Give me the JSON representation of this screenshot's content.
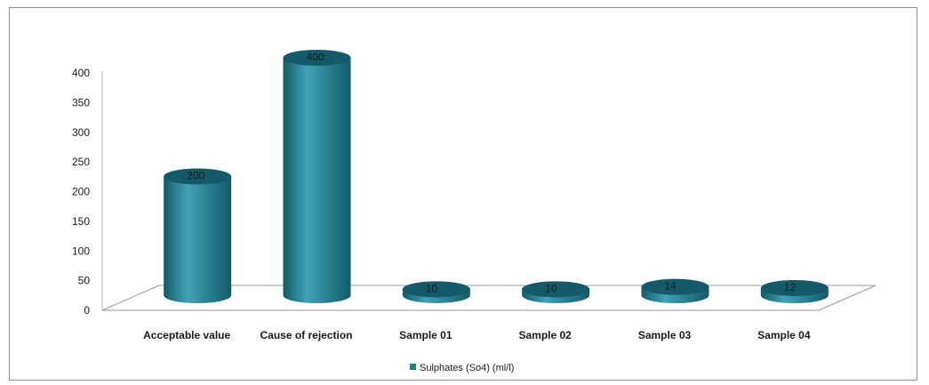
{
  "chart_data": {
    "type": "bar",
    "categories": [
      "Acceptable value",
      "Cause of rejection",
      "Sample 01",
      "Sample 02",
      "Sample 03",
      "Sample 04"
    ],
    "series": [
      {
        "name": "Sulphates (So4) (ml/l)",
        "values": [
          200,
          400,
          10,
          10,
          14,
          12
        ]
      }
    ],
    "yticks": [
      "0",
      "50",
      "100",
      "150",
      "200",
      "250",
      "300",
      "350",
      "400"
    ],
    "ylim": [
      0,
      400
    ],
    "grid": false,
    "legend_position": "bottom",
    "bar_shape": "3d-cylinder",
    "colors": {
      "series": "#1f7b8e",
      "series_dark": "#145a6a",
      "series_light": "#3fa3b6",
      "floor": "#9a9a9a"
    }
  }
}
